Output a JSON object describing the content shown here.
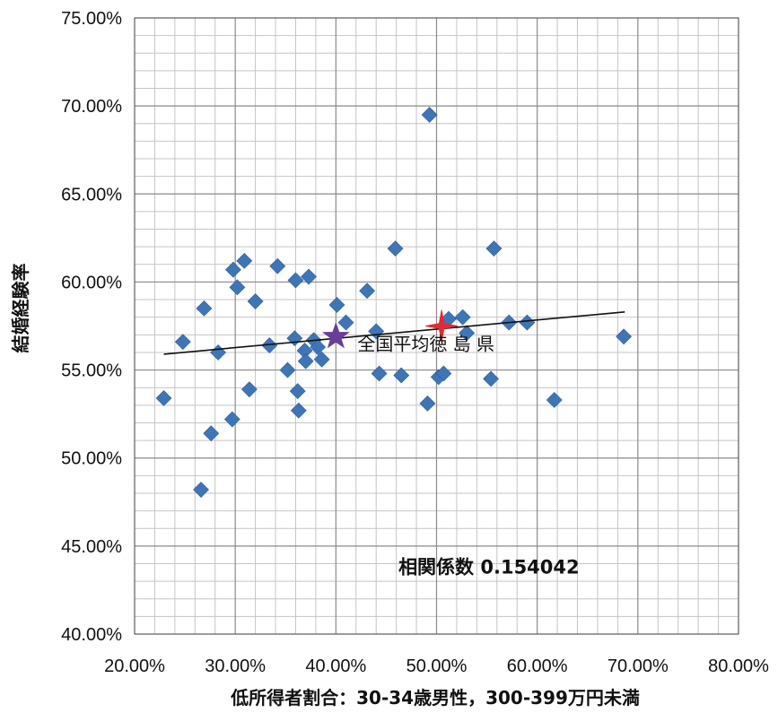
{
  "chart_data": {
    "type": "scatter",
    "xlabel": "低所得者割合：30-34歳男性，300-399万円未満",
    "ylabel": "結婚経験率",
    "xlim": [
      0.2,
      0.8
    ],
    "ylim": [
      0.4,
      0.75
    ],
    "x_ticks": [
      "20.00%",
      "30.00%",
      "40.00%",
      "50.00%",
      "60.00%",
      "70.00%",
      "80.00%"
    ],
    "y_ticks": [
      "75.00%",
      "70.00%",
      "65.00%",
      "60.00%",
      "55.00%",
      "50.00%",
      "45.00%",
      "40.00%"
    ],
    "grid": "major and minor",
    "marker_color": "#3d76b8",
    "trendline": {
      "x": [
        0.229,
        0.687
      ],
      "y": [
        0.559,
        0.583
      ],
      "color": "#111111"
    },
    "annotations": {
      "highlight_text": "全国平均徳 島 県",
      "correlation_text": "相関係数 0.154042"
    },
    "highlights": [
      {
        "x": 0.4,
        "y": 0.569,
        "shape": "star",
        "color": "#6a3d99"
      },
      {
        "x": 0.505,
        "y": 0.575,
        "shape": "star",
        "color": "#e8282e"
      }
    ],
    "points": [
      [
        0.229,
        0.534
      ],
      [
        0.248,
        0.566
      ],
      [
        0.266,
        0.482
      ],
      [
        0.269,
        0.585
      ],
      [
        0.276,
        0.514
      ],
      [
        0.283,
        0.56
      ],
      [
        0.297,
        0.522
      ],
      [
        0.298,
        0.607
      ],
      [
        0.302,
        0.597
      ],
      [
        0.309,
        0.612
      ],
      [
        0.314,
        0.539
      ],
      [
        0.32,
        0.589
      ],
      [
        0.334,
        0.564
      ],
      [
        0.342,
        0.609
      ],
      [
        0.352,
        0.55
      ],
      [
        0.359,
        0.568
      ],
      [
        0.36,
        0.601
      ],
      [
        0.362,
        0.538
      ],
      [
        0.363,
        0.527
      ],
      [
        0.369,
        0.561
      ],
      [
        0.37,
        0.555
      ],
      [
        0.373,
        0.603
      ],
      [
        0.378,
        0.567
      ],
      [
        0.382,
        0.563
      ],
      [
        0.386,
        0.556
      ],
      [
        0.401,
        0.587
      ],
      [
        0.41,
        0.577
      ],
      [
        0.431,
        0.595
      ],
      [
        0.44,
        0.572
      ],
      [
        0.443,
        0.548
      ],
      [
        0.459,
        0.619
      ],
      [
        0.465,
        0.547
      ],
      [
        0.491,
        0.531
      ],
      [
        0.493,
        0.695
      ],
      [
        0.502,
        0.546
      ],
      [
        0.507,
        0.548
      ],
      [
        0.512,
        0.579
      ],
      [
        0.526,
        0.58
      ],
      [
        0.53,
        0.571
      ],
      [
        0.554,
        0.545
      ],
      [
        0.557,
        0.619
      ],
      [
        0.572,
        0.577
      ],
      [
        0.59,
        0.577
      ],
      [
        0.617,
        0.533
      ],
      [
        0.686,
        0.569
      ]
    ]
  }
}
